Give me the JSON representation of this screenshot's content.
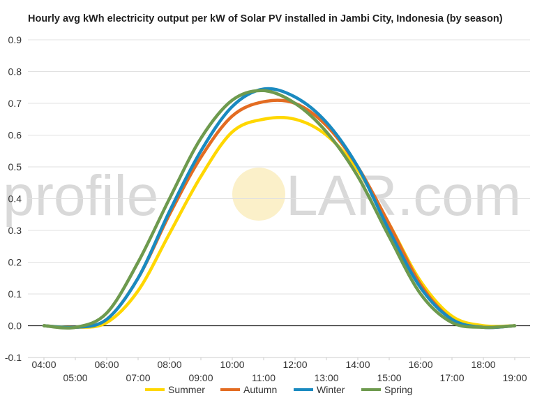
{
  "chart_data": {
    "type": "line",
    "title": "Hourly avg kWh electricity output per kW of Solar PV installed in Jambi City, Indonesia (by season)",
    "xlabel": "",
    "ylabel": "",
    "x": [
      "04:00",
      "05:00",
      "06:00",
      "07:00",
      "08:00",
      "09:00",
      "10:00",
      "11:00",
      "12:00",
      "13:00",
      "14:00",
      "15:00",
      "16:00",
      "17:00",
      "18:00",
      "19:00"
    ],
    "ylim": [
      -0.1,
      0.9
    ],
    "yticks": [
      "-0.1",
      "0.0",
      "0.1",
      "0.2",
      "0.3",
      "0.4",
      "0.5",
      "0.6",
      "0.7",
      "0.8",
      "0.9"
    ],
    "grid": true,
    "legend_position": "bottom",
    "series": [
      {
        "name": "Summer",
        "color": "#FFD700",
        "values": [
          0.0,
          -0.005,
          0.01,
          0.11,
          0.29,
          0.47,
          0.61,
          0.65,
          0.65,
          0.6,
          0.49,
          0.32,
          0.14,
          0.03,
          0.0,
          0.0
        ]
      },
      {
        "name": "Autumn",
        "color": "#E36C22",
        "values": [
          0.0,
          -0.005,
          0.02,
          0.15,
          0.35,
          0.53,
          0.66,
          0.705,
          0.7,
          0.63,
          0.5,
          0.32,
          0.13,
          0.02,
          -0.005,
          0.0
        ]
      },
      {
        "name": "Winter",
        "color": "#1A8AC0",
        "values": [
          0.0,
          -0.005,
          0.02,
          0.15,
          0.36,
          0.55,
          0.69,
          0.745,
          0.72,
          0.64,
          0.5,
          0.3,
          0.12,
          0.02,
          -0.005,
          0.0
        ]
      },
      {
        "name": "Spring",
        "color": "#6E9A4E",
        "values": [
          0.0,
          -0.005,
          0.04,
          0.2,
          0.4,
          0.59,
          0.71,
          0.74,
          0.7,
          0.61,
          0.47,
          0.28,
          0.1,
          0.01,
          -0.005,
          0.0
        ]
      }
    ],
    "watermark": {
      "left": "profile",
      "right": "LAR.com",
      "sun_color": "#FBF0C9"
    }
  }
}
